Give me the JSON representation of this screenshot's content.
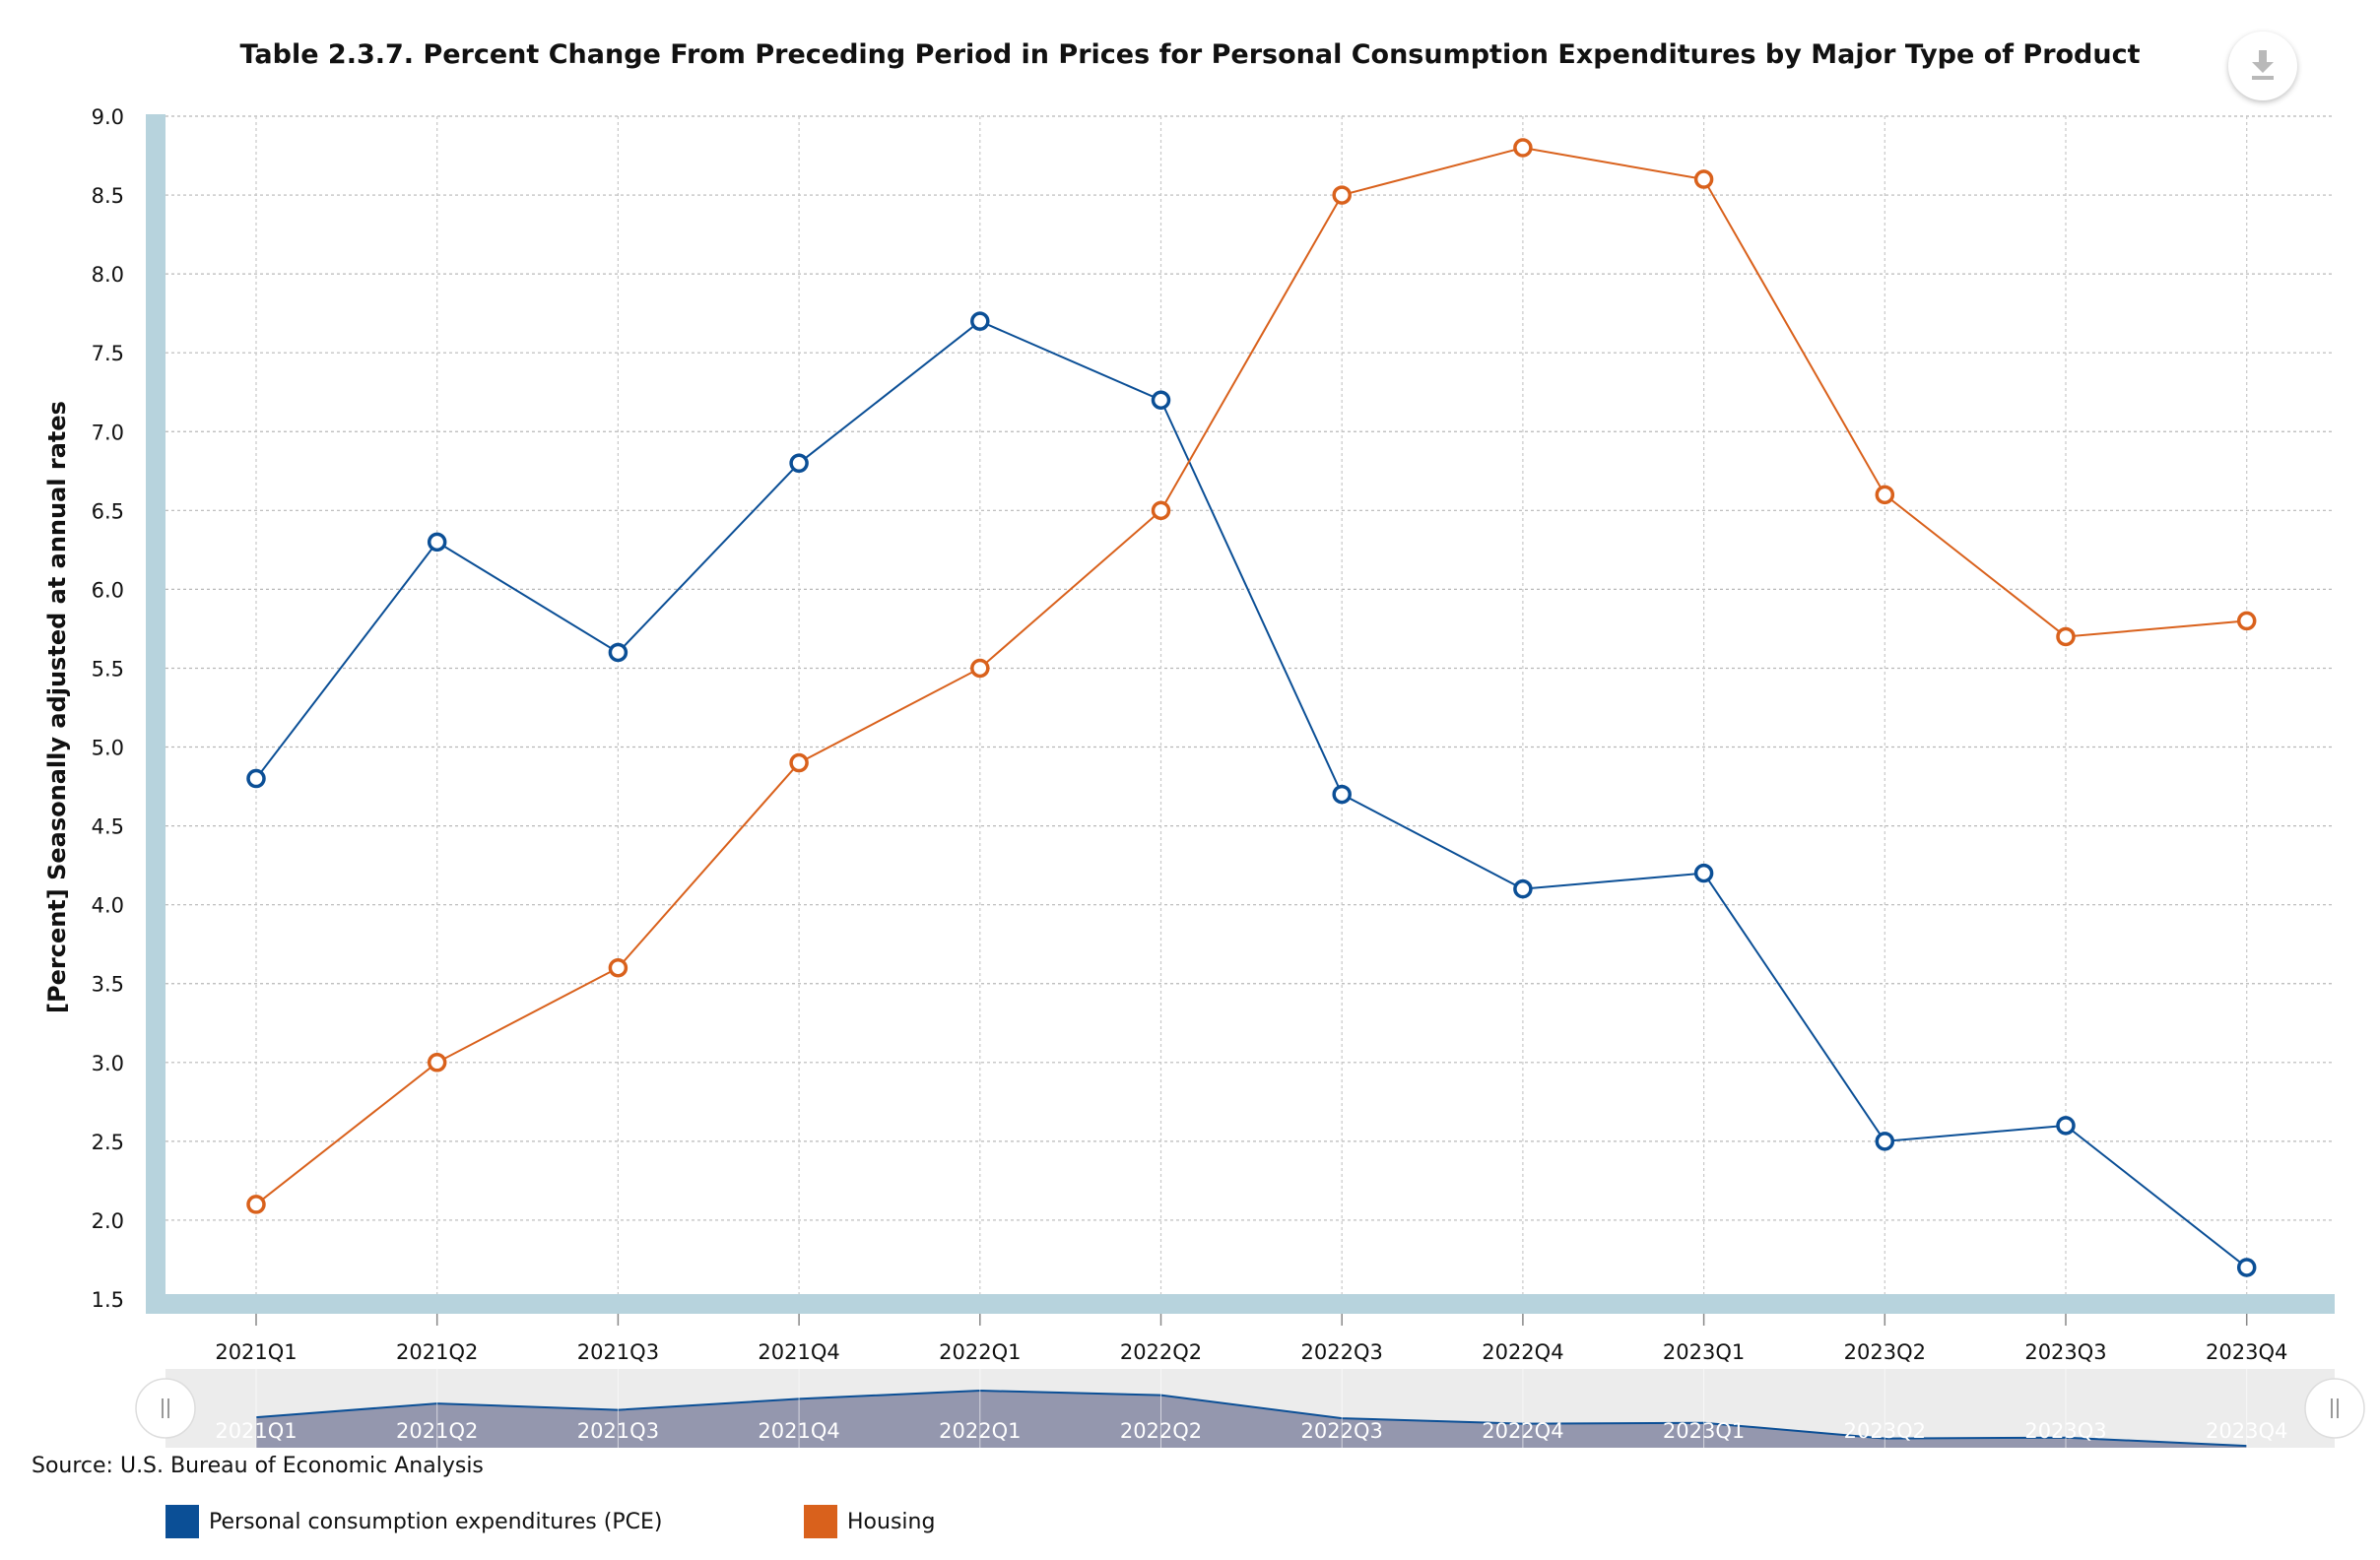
{
  "title": "Table 2.3.7. Percent Change From Preceding Period in Prices for Personal Consumption Expenditures by Major Type of Product",
  "source": "Source: U.S. Bureau of Economic Analysis",
  "download_icon": "download-icon",
  "colors": {
    "pce": "#0b4f96",
    "housing": "#d9611c",
    "axis_band": "#b7d3dd",
    "navigator_fill": "#9497ae",
    "navigator_bg": "#ececec"
  },
  "chart_data": {
    "type": "line",
    "title": "Table 2.3.7. Percent Change From Preceding Period in Prices for Personal Consumption Expenditures by Major Type of Product",
    "xlabel": "",
    "ylabel": "[Percent] Seasonally adjusted at annual rates",
    "ylim": [
      1.5,
      9.0
    ],
    "yticks": [
      "1.5",
      "2.0",
      "2.5",
      "3.0",
      "3.5",
      "4.0",
      "4.5",
      "5.0",
      "5.5",
      "6.0",
      "6.5",
      "7.0",
      "7.5",
      "8.0",
      "8.5",
      "9.0"
    ],
    "grid": true,
    "legend_position": "bottom-left",
    "categories": [
      "2021Q1",
      "2021Q2",
      "2021Q3",
      "2021Q4",
      "2022Q1",
      "2022Q2",
      "2022Q3",
      "2022Q4",
      "2023Q1",
      "2023Q2",
      "2023Q3",
      "2023Q4"
    ],
    "series": [
      {
        "name": "Personal consumption expenditures (PCE)",
        "color": "#0b4f96",
        "values": [
          4.8,
          6.3,
          5.6,
          6.8,
          7.7,
          7.2,
          4.7,
          4.1,
          4.2,
          2.5,
          2.6,
          1.7
        ]
      },
      {
        "name": "Housing",
        "color": "#d9611c",
        "values": [
          2.1,
          3.0,
          3.6,
          4.9,
          5.5,
          6.5,
          8.5,
          8.8,
          8.6,
          6.6,
          5.7,
          5.8
        ]
      }
    ]
  }
}
